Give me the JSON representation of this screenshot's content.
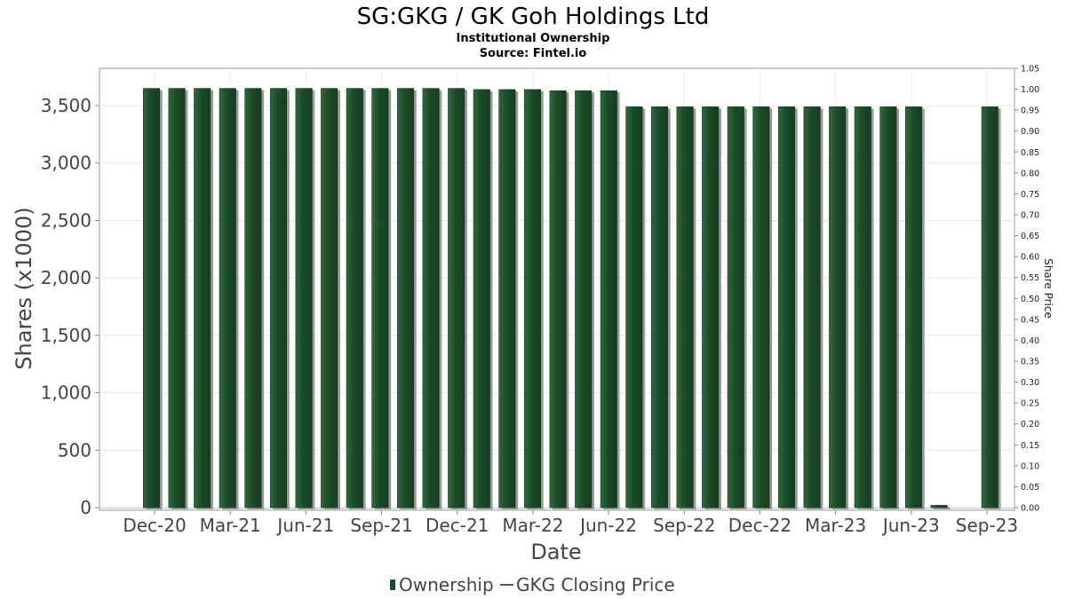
{
  "chart_data": {
    "type": "bar",
    "title": "SG:GKG / GK Goh Holdings Ltd",
    "subtitle_1": "Institutional Ownership",
    "subtitle_2": "Source: Fintel.io",
    "xlabel": "Date",
    "ylabel": "Shares (x1000)",
    "ylabel_right": "Share Price",
    "ylim": [
      0,
      3700
    ],
    "ylim_right": [
      0.0,
      1.05
    ],
    "y_ticks": [
      "0",
      "500",
      "1,000",
      "1,500",
      "2,000",
      "2,500",
      "3,000",
      "3,500"
    ],
    "y_right_ticks": [
      "0.00",
      "0.05",
      "0.10",
      "0.15",
      "0.20",
      "0.25",
      "0.30",
      "0.35",
      "0.40",
      "0.45",
      "0.50",
      "0.55",
      "0.60",
      "0.65",
      "0.70",
      "0.75",
      "0.80",
      "0.85",
      "0.90",
      "0.95",
      "1.00",
      "1.05"
    ],
    "x_ticks": [
      "Dec-20",
      "Mar-21",
      "Jun-21",
      "Sep-21",
      "Dec-21",
      "Mar-22",
      "Jun-22",
      "Sep-22",
      "Dec-22",
      "Mar-23",
      "Jun-23",
      "Sep-23"
    ],
    "grid": true,
    "legend_position": "bottom",
    "series": [
      {
        "name": "Ownership",
        "color": "#1f4d2b",
        "values": [
          3650,
          3650,
          3650,
          3650,
          3650,
          3650,
          3650,
          3650,
          3650,
          3650,
          3650,
          3650,
          3650,
          3640,
          3640,
          3640,
          3630,
          3630,
          3630,
          3490,
          3490,
          3490,
          3490,
          3490,
          3490,
          3490,
          3490,
          3490,
          3490,
          3490,
          3490,
          20,
          null,
          3490
        ]
      },
      {
        "name": "GKG Closing Price",
        "color": "#555555",
        "values": []
      }
    ]
  }
}
